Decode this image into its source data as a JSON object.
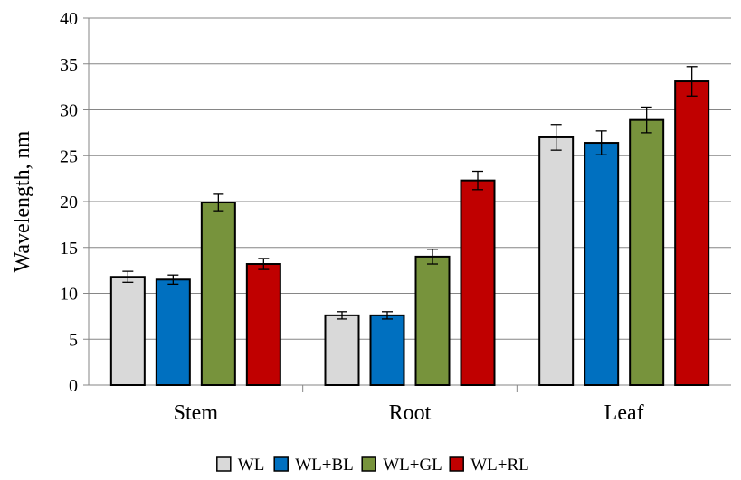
{
  "chart_data": {
    "type": "bar",
    "title": "",
    "xlabel": "",
    "ylabel": "Wavelength, nm",
    "ylim": [
      0,
      40
    ],
    "yticks": [
      0,
      5,
      10,
      15,
      20,
      25,
      30,
      35,
      40
    ],
    "grid": true,
    "legend_position": "bottom",
    "categories": [
      "Stem",
      "Root",
      "Leaf"
    ],
    "series": [
      {
        "name": "WL",
        "color": "#d9d9d9",
        "values": [
          11.8,
          7.6,
          27.0
        ],
        "errors": [
          0.6,
          0.4,
          1.4
        ]
      },
      {
        "name": "WL+BL",
        "color": "#0070c0",
        "values": [
          11.5,
          7.6,
          26.4
        ],
        "errors": [
          0.5,
          0.4,
          1.3
        ]
      },
      {
        "name": "WL+GL",
        "color": "#77933c",
        "values": [
          19.9,
          14.0,
          28.9
        ],
        "errors": [
          0.9,
          0.8,
          1.4
        ]
      },
      {
        "name": "WL+RL",
        "color": "#c00000",
        "values": [
          13.2,
          22.3,
          33.1
        ],
        "errors": [
          0.6,
          1.0,
          1.6
        ]
      }
    ]
  }
}
